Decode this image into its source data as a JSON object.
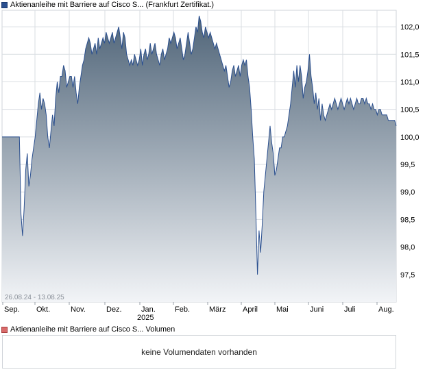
{
  "legend": {
    "price_label": "Aktienanleihe mit Barriere auf Cisco S... (Frankfurt Zertifikat.)",
    "volume_label": "Aktienanleihe mit Barriere auf Cisco S... Volumen"
  },
  "volume_panel": {
    "message": "keine Volumendaten vorhanden"
  },
  "colors": {
    "line": "#2a4f8f",
    "fill_top": "#4f6478",
    "fill_bottom": "#f2f4f7",
    "grid": "#d9dde2"
  },
  "chart_data": {
    "type": "area",
    "date_range_label": "26.08.24 - 13.08.25",
    "y_ticks": [
      "97,5",
      "98,0",
      "98,5",
      "99,0",
      "99,5",
      "100,0",
      "100,5",
      "101,0",
      "101,5",
      "102,0"
    ],
    "ylim": [
      97.0,
      102.3
    ],
    "x_ticks": [
      "Sep.",
      "Okt.",
      "Nov.",
      "Dez.",
      "Jan.",
      "Feb.",
      "März",
      "April",
      "Mai",
      "Juni",
      "Juli",
      "Aug."
    ],
    "x_year_label": "2025",
    "grid": true,
    "values": [
      100.0,
      100.0,
      100.0,
      100.0,
      100.0,
      100.0,
      100.0,
      100.0,
      100.0,
      100.0,
      100.0,
      100.0,
      98.6,
      98.2,
      98.7,
      99.4,
      99.7,
      99.1,
      99.3,
      99.6,
      99.8,
      100.0,
      100.3,
      100.6,
      100.8,
      100.5,
      100.7,
      100.6,
      100.4,
      100.0,
      99.8,
      100.1,
      100.4,
      100.2,
      100.7,
      101.0,
      100.8,
      101.1,
      101.1,
      101.3,
      101.2,
      100.9,
      101.0,
      101.1,
      101.1,
      100.9,
      101.1,
      100.8,
      100.6,
      100.9,
      101.1,
      101.3,
      101.4,
      101.6,
      101.7,
      101.8,
      101.7,
      101.5,
      101.6,
      101.7,
      101.5,
      101.8,
      101.6,
      101.7,
      101.8,
      101.7,
      101.9,
      101.8,
      101.7,
      101.8,
      101.9,
      101.7,
      101.8,
      101.9,
      102.0,
      101.8,
      101.6,
      101.9,
      101.8,
      101.5,
      101.4,
      101.3,
      101.4,
      101.3,
      101.5,
      101.4,
      101.3,
      101.4,
      101.6,
      101.3,
      101.5,
      101.6,
      101.4,
      101.5,
      101.7,
      101.5,
      101.6,
      101.7,
      101.5,
      101.4,
      101.3,
      101.5,
      101.6,
      101.4,
      101.5,
      101.6,
      101.8,
      101.7,
      101.8,
      101.9,
      101.8,
      101.6,
      101.7,
      101.8,
      101.6,
      101.4,
      101.5,
      101.7,
      101.9,
      101.7,
      101.5,
      101.6,
      101.8,
      102.0,
      101.9,
      102.2,
      102.1,
      101.9,
      101.8,
      102.0,
      101.9,
      101.8,
      101.9,
      101.8,
      101.7,
      101.6,
      101.7,
      101.6,
      101.5,
      101.4,
      101.3,
      101.2,
      101.3,
      101.1,
      100.9,
      101.0,
      101.2,
      101.3,
      101.1,
      101.2,
      101.3,
      101.1,
      101.3,
      101.4,
      101.3,
      101.4,
      101.1,
      100.9,
      100.5,
      100.0,
      99.6,
      98.6,
      97.5,
      98.3,
      97.9,
      98.4,
      99.0,
      99.3,
      99.6,
      99.9,
      100.2,
      99.9,
      99.7,
      99.3,
      99.4,
      99.6,
      99.8,
      99.8,
      100.0,
      100.0,
      100.1,
      100.2,
      100.4,
      100.6,
      100.9,
      101.2,
      100.9,
      101.3,
      101.0,
      101.3,
      101.1,
      100.7,
      100.9,
      101.0,
      101.2,
      101.5,
      101.1,
      100.9,
      100.6,
      100.8,
      100.5,
      100.7,
      100.3,
      100.6,
      100.4,
      100.3,
      100.4,
      100.5,
      100.6,
      100.5,
      100.6,
      100.7,
      100.6,
      100.5,
      100.6,
      100.7,
      100.6,
      100.5,
      100.6,
      100.7,
      100.6,
      100.7,
      100.6,
      100.5,
      100.6,
      100.7,
      100.6,
      100.6,
      100.7,
      100.7,
      100.6,
      100.7,
      100.6,
      100.6,
      100.5,
      100.6,
      100.5,
      100.5,
      100.4,
      100.5,
      100.5,
      100.4,
      100.4,
      100.4,
      100.4,
      100.3,
      100.3,
      100.3,
      100.3,
      100.3,
      100.2
    ]
  }
}
